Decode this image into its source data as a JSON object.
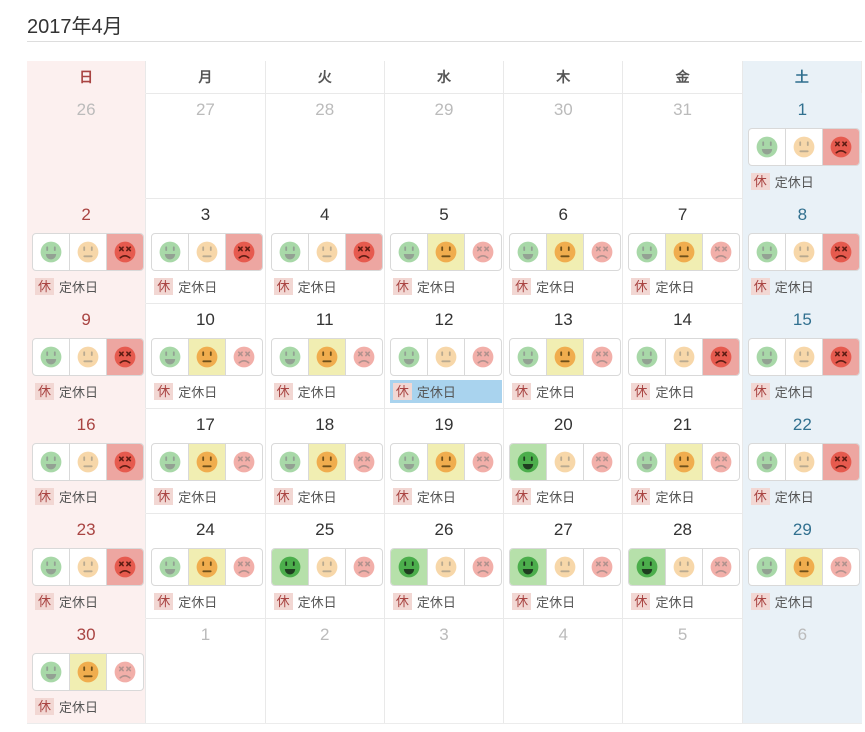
{
  "title": "2017年4月",
  "weekday_headers": [
    {
      "label": "日",
      "type": "sun"
    },
    {
      "label": "月",
      "type": "weekday"
    },
    {
      "label": "火",
      "type": "weekday"
    },
    {
      "label": "水",
      "type": "weekday"
    },
    {
      "label": "木",
      "type": "weekday"
    },
    {
      "label": "金",
      "type": "weekday"
    },
    {
      "label": "土",
      "type": "sat"
    }
  ],
  "closed_badge": "休",
  "closed_label": "定休日",
  "moods": [
    {
      "id": "green",
      "icon": "happy-face-icon",
      "meaning": "happy"
    },
    {
      "id": "yellow",
      "icon": "neutral-face-icon",
      "meaning": "neutral"
    },
    {
      "id": "red",
      "icon": "angry-face-icon",
      "meaning": "angry"
    }
  ],
  "colors": {
    "sunday_text": "#a94442",
    "saturday_text": "#31708f",
    "sunday_column_bg": "#fcf0ef",
    "saturday_column_bg": "#e9f1f7",
    "selected_green_bg": "#b6e0aa",
    "selected_yellow_bg": "#f1eeb2",
    "selected_red_bg": "#eda6a1",
    "highlight_blue_bg": "#a9d3ee",
    "closed_badge_bg": "#f2d7d3",
    "closed_badge_text": "#a94442",
    "other_month_text": "#bbbbbb",
    "day_text": "#333333"
  },
  "weeks": [
    [
      {
        "num": "26",
        "in_month": false
      },
      {
        "num": "27",
        "in_month": false
      },
      {
        "num": "28",
        "in_month": false
      },
      {
        "num": "29",
        "in_month": false
      },
      {
        "num": "30",
        "in_month": false
      },
      {
        "num": "31",
        "in_month": false
      },
      {
        "num": "1",
        "in_month": true,
        "mood": "red",
        "closed": true
      }
    ],
    [
      {
        "num": "2",
        "in_month": true,
        "mood": "red",
        "closed": true
      },
      {
        "num": "3",
        "in_month": true,
        "mood": "red",
        "closed": true
      },
      {
        "num": "4",
        "in_month": true,
        "mood": "red",
        "closed": true
      },
      {
        "num": "5",
        "in_month": true,
        "mood": "yellow",
        "closed": true
      },
      {
        "num": "6",
        "in_month": true,
        "mood": "yellow",
        "closed": true
      },
      {
        "num": "7",
        "in_month": true,
        "mood": "yellow",
        "closed": true
      },
      {
        "num": "8",
        "in_month": true,
        "mood": "red",
        "closed": true
      }
    ],
    [
      {
        "num": "9",
        "in_month": true,
        "mood": "red",
        "closed": true
      },
      {
        "num": "10",
        "in_month": true,
        "mood": "yellow",
        "closed": true
      },
      {
        "num": "11",
        "in_month": true,
        "mood": "yellow",
        "closed": true
      },
      {
        "num": "12",
        "in_month": true,
        "mood": null,
        "closed": true,
        "highlight": true
      },
      {
        "num": "13",
        "in_month": true,
        "mood": "yellow",
        "closed": true
      },
      {
        "num": "14",
        "in_month": true,
        "mood": "red",
        "closed": true
      },
      {
        "num": "15",
        "in_month": true,
        "mood": "red",
        "closed": true
      }
    ],
    [
      {
        "num": "16",
        "in_month": true,
        "mood": "red",
        "closed": true
      },
      {
        "num": "17",
        "in_month": true,
        "mood": "yellow",
        "closed": true
      },
      {
        "num": "18",
        "in_month": true,
        "mood": "yellow",
        "closed": true
      },
      {
        "num": "19",
        "in_month": true,
        "mood": "yellow",
        "closed": true
      },
      {
        "num": "20",
        "in_month": true,
        "mood": "green",
        "closed": true
      },
      {
        "num": "21",
        "in_month": true,
        "mood": "yellow",
        "closed": true
      },
      {
        "num": "22",
        "in_month": true,
        "mood": "red",
        "closed": true
      }
    ],
    [
      {
        "num": "23",
        "in_month": true,
        "mood": "red",
        "closed": true
      },
      {
        "num": "24",
        "in_month": true,
        "mood": "yellow",
        "closed": true
      },
      {
        "num": "25",
        "in_month": true,
        "mood": "green",
        "closed": true
      },
      {
        "num": "26",
        "in_month": true,
        "mood": "green",
        "closed": true
      },
      {
        "num": "27",
        "in_month": true,
        "mood": "green",
        "closed": true
      },
      {
        "num": "28",
        "in_month": true,
        "mood": "green",
        "closed": true
      },
      {
        "num": "29",
        "in_month": true,
        "mood": "yellow",
        "closed": true
      }
    ],
    [
      {
        "num": "30",
        "in_month": true,
        "mood": "yellow",
        "closed": true
      },
      {
        "num": "1",
        "in_month": false
      },
      {
        "num": "2",
        "in_month": false
      },
      {
        "num": "3",
        "in_month": false
      },
      {
        "num": "4",
        "in_month": false
      },
      {
        "num": "5",
        "in_month": false
      },
      {
        "num": "6",
        "in_month": false
      }
    ]
  ]
}
